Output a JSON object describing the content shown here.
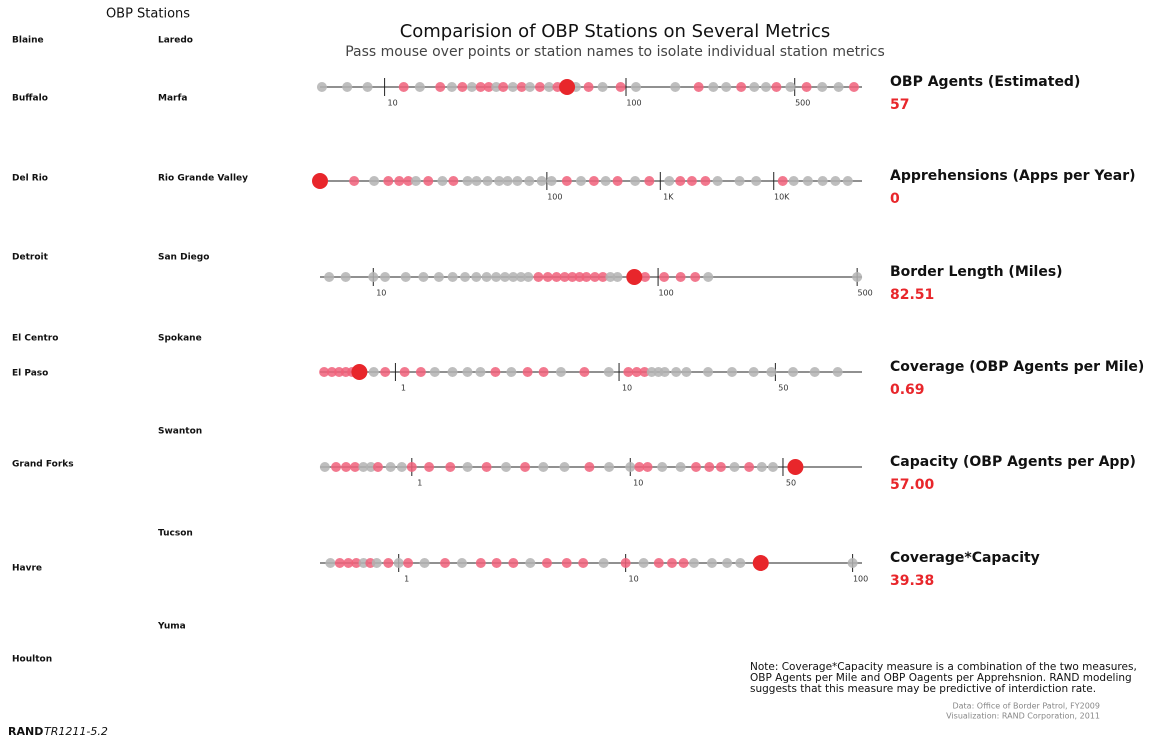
{
  "header": {
    "title": "Comparision of OBP Stations on Several Metrics",
    "subtitle": "Pass mouse over points or station names to isolate individual station metrics"
  },
  "stations": {
    "heading": "OBP Stations",
    "column_1": [
      "Blaine",
      "Buffalo",
      "Del Rio",
      "Detroit",
      "El Centro",
      "El Paso",
      "Grand Forks",
      "Havre",
      "Houlton"
    ],
    "column_2": [
      "Laredo",
      "Marfa",
      "Rio Grande Valley",
      "San Diego",
      "Spokane",
      "Swanton",
      "Tucson",
      "Yuma"
    ]
  },
  "chart_data": [
    {
      "type": "dot",
      "title": "OBP Agents (Estimated)",
      "log_scale": true,
      "xlim": [
        5.4,
        950
      ],
      "xticks": [
        10,
        100,
        500
      ],
      "color": "#f0607a",
      "muted_color": "#b3b3b3",
      "selected_color": "#e8262b",
      "selected": 57,
      "selected_label": "57",
      "values": [
        5.5,
        7,
        8.5,
        12,
        14,
        17,
        19,
        21,
        23,
        25,
        27,
        29,
        31,
        34,
        37,
        40,
        44,
        48,
        52,
        62,
        70,
        80,
        95,
        110,
        160,
        200,
        230,
        260,
        300,
        340,
        380,
        420,
        480,
        560,
        650,
        760,
        880
      ],
      "highlighted": [
        false,
        false,
        false,
        true,
        false,
        true,
        false,
        true,
        false,
        true,
        true,
        false,
        true,
        false,
        true,
        false,
        true,
        false,
        true,
        false,
        true,
        false,
        true,
        false,
        false,
        true,
        false,
        false,
        true,
        false,
        false,
        true,
        false,
        true,
        false,
        false,
        true
      ]
    },
    {
      "type": "dot",
      "title": "Apprehensions (Apps per Year)",
      "log_scale": true,
      "xlim": [
        1,
        60000
      ],
      "xticks": [
        100,
        {
          "value": 1000,
          "label": "1K"
        },
        {
          "value": 10000,
          "label": "10K"
        }
      ],
      "color": "#f0607a",
      "muted_color": "#b3b3b3",
      "selected_color": "#e8262b",
      "selected": 0,
      "selected_label": "0",
      "values": [
        2,
        3,
        4,
        5,
        6,
        7,
        9,
        12,
        15,
        20,
        24,
        30,
        38,
        45,
        55,
        70,
        90,
        110,
        150,
        200,
        260,
        330,
        420,
        600,
        800,
        1200,
        1500,
        1900,
        2500,
        3200,
        5000,
        7000,
        12000,
        15000,
        20000,
        27000,
        35000,
        45000
      ],
      "highlighted": [
        true,
        false,
        true,
        true,
        true,
        false,
        true,
        false,
        true,
        false,
        false,
        false,
        false,
        false,
        false,
        false,
        false,
        false,
        true,
        false,
        true,
        false,
        true,
        false,
        true,
        false,
        true,
        true,
        true,
        false,
        false,
        false,
        true,
        false,
        false,
        false,
        false,
        false
      ]
    },
    {
      "type": "dot",
      "title": "Border Length (Miles)",
      "log_scale": true,
      "xlim": [
        6.5,
        520
      ],
      "xticks": [
        10,
        100,
        500
      ],
      "color": "#f0607a",
      "muted_color": "#b3b3b3",
      "selected_color": "#e8262b",
      "selected": 82.51,
      "selected_label": "82.51",
      "values": [
        7,
        8,
        10,
        11,
        13,
        15,
        17,
        19,
        21,
        23,
        25,
        27,
        29,
        31,
        33,
        35,
        38,
        41,
        44,
        47,
        50,
        53,
        56,
        60,
        64,
        68,
        72,
        90,
        105,
        120,
        135,
        150,
        500
      ],
      "highlighted": [
        false,
        false,
        false,
        false,
        false,
        false,
        false,
        false,
        false,
        false,
        false,
        false,
        false,
        false,
        false,
        false,
        true,
        true,
        true,
        true,
        true,
        true,
        true,
        true,
        true,
        false,
        false,
        true,
        true,
        true,
        true,
        false,
        false
      ]
    },
    {
      "type": "dot",
      "title": "Coverage (OBP Agents per Mile)",
      "log_scale": true,
      "xlim": [
        0.46,
        122
      ],
      "xticks": [
        1,
        10,
        50
      ],
      "color": "#f0607a",
      "muted_color": "#b3b3b3",
      "selected_color": "#e8262b",
      "selected": 0.69,
      "selected_label": "0.69",
      "values": [
        0.48,
        0.52,
        0.56,
        0.6,
        0.64,
        0.7,
        0.8,
        0.9,
        1.1,
        1.3,
        1.5,
        1.8,
        2.1,
        2.4,
        2.8,
        3.3,
        3.9,
        4.6,
        5.5,
        7,
        9,
        11,
        12,
        13,
        14,
        15,
        16,
        18,
        20,
        25,
        32,
        40,
        48,
        60,
        75,
        95
      ],
      "highlighted": [
        true,
        true,
        true,
        true,
        true,
        false,
        false,
        true,
        true,
        true,
        false,
        false,
        false,
        false,
        true,
        false,
        true,
        true,
        false,
        true,
        false,
        true,
        true,
        true,
        false,
        false,
        false,
        false,
        false,
        false,
        false,
        false,
        false,
        false,
        false,
        false
      ]
    },
    {
      "type": "dot",
      "title": "Capacity (OBP Agents per App)",
      "log_scale": true,
      "xlim": [
        0.38,
        115
      ],
      "xticks": [
        1,
        10,
        50
      ],
      "color": "#f0607a",
      "muted_color": "#b3b3b3",
      "selected_color": "#e8262b",
      "selected": 57,
      "selected_label": "57.00",
      "values": [
        0.4,
        0.45,
        0.5,
        0.55,
        0.6,
        0.65,
        0.7,
        0.8,
        0.9,
        1,
        1.2,
        1.5,
        1.8,
        2.2,
        2.7,
        3.3,
        4,
        5,
        6.5,
        8,
        10,
        11,
        12,
        14,
        17,
        20,
        23,
        26,
        30,
        35,
        40,
        45
      ],
      "highlighted": [
        false,
        true,
        true,
        true,
        false,
        false,
        true,
        false,
        false,
        true,
        true,
        true,
        false,
        true,
        false,
        true,
        false,
        false,
        true,
        false,
        false,
        true,
        true,
        false,
        false,
        true,
        true,
        true,
        false,
        true,
        false,
        false
      ]
    },
    {
      "type": "dot",
      "title": "Coverage*Capacity",
      "log_scale": true,
      "xlim": [
        0.45,
        110
      ],
      "xticks": [
        1,
        10,
        100
      ],
      "color": "#f0607a",
      "muted_color": "#b3b3b3",
      "selected_color": "#e8262b",
      "selected": 39.38,
      "selected_label": "39.38",
      "values": [
        0.5,
        0.55,
        0.6,
        0.65,
        0.7,
        0.75,
        0.8,
        0.9,
        1,
        1.1,
        1.3,
        1.6,
        1.9,
        2.3,
        2.7,
        3.2,
        3.8,
        4.5,
        5.5,
        6.5,
        8,
        10,
        12,
        14,
        16,
        18,
        20,
        24,
        28,
        32,
        100
      ],
      "highlighted": [
        false,
        true,
        true,
        true,
        false,
        true,
        false,
        true,
        false,
        true,
        false,
        true,
        false,
        true,
        true,
        true,
        false,
        true,
        true,
        true,
        false,
        true,
        false,
        true,
        true,
        true,
        false,
        false,
        false,
        false,
        false
      ]
    }
  ],
  "note": [
    "Note: Coverage*Capacity measure is a combination of the two measures,",
    "OBP Agents per Mile and OBP Oagents per Apprehsnion.  RAND modeling",
    "suggests that this measure may be predictive of interdiction rate."
  ],
  "credits": [
    "Data: Office of Border Patrol, FY2009",
    "Visualization: RAND Corporation, 2011"
  ],
  "footer": {
    "org": "RAND",
    "id": "TR1211-5.2"
  }
}
